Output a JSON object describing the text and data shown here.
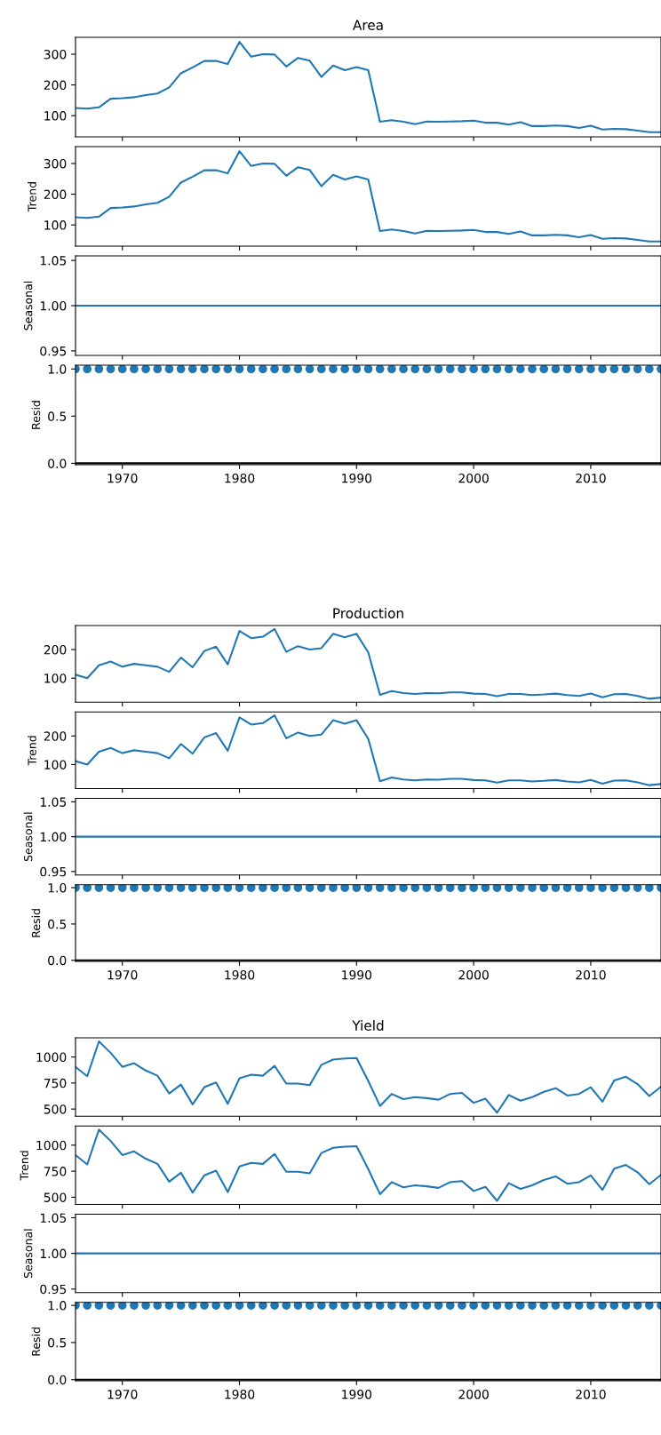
{
  "chart_data": [
    {
      "type": "line",
      "title": "Area",
      "color": "#1f77b4",
      "xlim": [
        1966,
        2016
      ],
      "xticks": [
        1970,
        1980,
        1990,
        2000,
        2010
      ],
      "ylim": [
        31,
        355
      ],
      "yticks": [
        100,
        200,
        300
      ],
      "tick_labels": "y",
      "x": [
        1966,
        1967,
        1968,
        1969,
        1970,
        1971,
        1972,
        1973,
        1974,
        1975,
        1976,
        1977,
        1978,
        1979,
        1980,
        1981,
        1982,
        1983,
        1984,
        1985,
        1986,
        1987,
        1988,
        1989,
        1990,
        1991,
        1992,
        1993,
        1994,
        1995,
        1996,
        1997,
        1998,
        1999,
        2000,
        2001,
        2002,
        2003,
        2004,
        2005,
        2006,
        2007,
        2008,
        2009,
        2010,
        2011,
        2012,
        2013,
        2014,
        2015,
        2016
      ],
      "values": [
        125,
        123,
        127,
        155,
        157,
        160,
        167,
        172,
        192,
        238,
        257,
        278,
        278,
        268,
        340,
        292,
        300,
        299,
        260,
        288,
        279,
        226,
        263,
        248,
        258,
        248,
        80,
        85,
        80,
        72,
        81,
        80,
        81,
        82,
        84,
        77,
        77,
        71,
        79,
        66,
        66,
        68,
        66,
        60,
        67,
        55,
        57,
        56,
        51,
        46,
        46
      ]
    },
    {
      "type": "line",
      "ylabel": "Trend",
      "color": "#1f77b4",
      "xlim": [
        1966,
        2016
      ],
      "xticks": [
        1970,
        1980,
        1990,
        2000,
        2010
      ],
      "ylim": [
        31,
        355
      ],
      "yticks": [
        100,
        200,
        300
      ],
      "tick_labels": "y",
      "x": [
        1966,
        1967,
        1968,
        1969,
        1970,
        1971,
        1972,
        1973,
        1974,
        1975,
        1976,
        1977,
        1978,
        1979,
        1980,
        1981,
        1982,
        1983,
        1984,
        1985,
        1986,
        1987,
        1988,
        1989,
        1990,
        1991,
        1992,
        1993,
        1994,
        1995,
        1996,
        1997,
        1998,
        1999,
        2000,
        2001,
        2002,
        2003,
        2004,
        2005,
        2006,
        2007,
        2008,
        2009,
        2010,
        2011,
        2012,
        2013,
        2014,
        2015,
        2016
      ],
      "values": [
        125,
        123,
        127,
        155,
        157,
        160,
        167,
        172,
        192,
        238,
        257,
        278,
        278,
        268,
        340,
        292,
        300,
        299,
        260,
        288,
        279,
        226,
        263,
        248,
        258,
        248,
        80,
        85,
        80,
        72,
        81,
        80,
        81,
        82,
        84,
        77,
        77,
        71,
        79,
        66,
        66,
        68,
        66,
        60,
        67,
        55,
        57,
        56,
        51,
        46,
        46
      ]
    },
    {
      "type": "line",
      "ylabel": "Seasonal",
      "color": "#1f77b4",
      "xlim": [
        1966,
        2016
      ],
      "xticks": [
        1970,
        1980,
        1990,
        2000,
        2010
      ],
      "ylim": [
        0.945,
        1.055
      ],
      "yticks": [
        {
          "value": 0.95,
          "label": "0.95"
        },
        {
          "value": 1.0,
          "label": "1.00"
        },
        {
          "value": 1.05,
          "label": "1.05"
        }
      ],
      "tick_labels": "y",
      "x": [
        1966,
        1967,
        1968,
        1969,
        1970,
        1971,
        1972,
        1973,
        1974,
        1975,
        1976,
        1977,
        1978,
        1979,
        1980,
        1981,
        1982,
        1983,
        1984,
        1985,
        1986,
        1987,
        1988,
        1989,
        1990,
        1991,
        1992,
        1993,
        1994,
        1995,
        1996,
        1997,
        1998,
        1999,
        2000,
        2001,
        2002,
        2003,
        2004,
        2005,
        2006,
        2007,
        2008,
        2009,
        2010,
        2011,
        2012,
        2013,
        2014,
        2015,
        2016
      ],
      "values": [
        1,
        1,
        1,
        1,
        1,
        1,
        1,
        1,
        1,
        1,
        1,
        1,
        1,
        1,
        1,
        1,
        1,
        1,
        1,
        1,
        1,
        1,
        1,
        1,
        1,
        1,
        1,
        1,
        1,
        1,
        1,
        1,
        1,
        1,
        1,
        1,
        1,
        1,
        1,
        1,
        1,
        1,
        1,
        1,
        1,
        1,
        1,
        1,
        1,
        1,
        1
      ]
    },
    {
      "type": "scatter",
      "ylabel": "Resid",
      "color": "#1f77b4",
      "marker": "circle",
      "xlim": [
        1966,
        2016
      ],
      "xticks": [
        1970,
        1980,
        1990,
        2000,
        2010
      ],
      "ylim": [
        -0.015,
        1.04
      ],
      "yticks": [
        {
          "value": 0,
          "label": "0.0"
        },
        {
          "value": 0.5,
          "label": "0.5"
        },
        {
          "value": 1,
          "label": "1.0"
        }
      ],
      "ref_lines": [
        {
          "axis": "y",
          "value": 0,
          "color": "#000000"
        }
      ],
      "x": [
        1966,
        1967,
        1968,
        1969,
        1970,
        1971,
        1972,
        1973,
        1974,
        1975,
        1976,
        1977,
        1978,
        1979,
        1980,
        1981,
        1982,
        1983,
        1984,
        1985,
        1986,
        1987,
        1988,
        1989,
        1990,
        1991,
        1992,
        1993,
        1994,
        1995,
        1996,
        1997,
        1998,
        1999,
        2000,
        2001,
        2002,
        2003,
        2004,
        2005,
        2006,
        2007,
        2008,
        2009,
        2010,
        2011,
        2012,
        2013,
        2014,
        2015,
        2016
      ],
      "values": [
        1,
        1,
        1,
        1,
        1,
        1,
        1,
        1,
        1,
        1,
        1,
        1,
        1,
        1,
        1,
        1,
        1,
        1,
        1,
        1,
        1,
        1,
        1,
        1,
        1,
        1,
        1,
        1,
        1,
        1,
        1,
        1,
        1,
        1,
        1,
        1,
        1,
        1,
        1,
        1,
        1,
        1,
        1,
        1,
        1,
        1,
        1,
        1,
        1,
        1,
        1
      ]
    },
    {
      "type": "line",
      "title": "Production",
      "color": "#1f77b4",
      "xlim": [
        1966,
        2016
      ],
      "xticks": [
        1970,
        1980,
        1990,
        2000,
        2010
      ],
      "ylim": [
        16,
        284
      ],
      "yticks": [
        100,
        200
      ],
      "tick_labels": "y",
      "x": [
        1966,
        1967,
        1968,
        1969,
        1970,
        1971,
        1972,
        1973,
        1974,
        1975,
        1976,
        1977,
        1978,
        1979,
        1980,
        1981,
        1982,
        1983,
        1984,
        1985,
        1986,
        1987,
        1988,
        1989,
        1990,
        1991,
        1992,
        1993,
        1994,
        1995,
        1996,
        1997,
        1998,
        1999,
        2000,
        2001,
        2002,
        2003,
        2004,
        2005,
        2006,
        2007,
        2008,
        2009,
        2010,
        2011,
        2012,
        2013,
        2014,
        2015,
        2016
      ],
      "values": [
        112,
        100,
        145,
        158,
        140,
        150,
        145,
        140,
        122,
        172,
        138,
        195,
        210,
        148,
        265,
        240,
        245,
        272,
        192,
        212,
        200,
        205,
        255,
        243,
        255,
        190,
        42,
        55,
        48,
        45,
        48,
        47,
        50,
        50,
        46,
        45,
        37,
        45,
        45,
        41,
        43,
        46,
        41,
        38,
        46,
        33,
        44,
        45,
        38,
        28,
        32
      ]
    },
    {
      "type": "line",
      "ylabel": "Trend",
      "color": "#1f77b4",
      "xlim": [
        1966,
        2016
      ],
      "xticks": [
        1970,
        1980,
        1990,
        2000,
        2010
      ],
      "ylim": [
        16,
        284
      ],
      "yticks": [
        100,
        200
      ],
      "tick_labels": "y",
      "x": [
        1966,
        1967,
        1968,
        1969,
        1970,
        1971,
        1972,
        1973,
        1974,
        1975,
        1976,
        1977,
        1978,
        1979,
        1980,
        1981,
        1982,
        1983,
        1984,
        1985,
        1986,
        1987,
        1988,
        1989,
        1990,
        1991,
        1992,
        1993,
        1994,
        1995,
        1996,
        1997,
        1998,
        1999,
        2000,
        2001,
        2002,
        2003,
        2004,
        2005,
        2006,
        2007,
        2008,
        2009,
        2010,
        2011,
        2012,
        2013,
        2014,
        2015,
        2016
      ],
      "values": [
        112,
        100,
        145,
        158,
        140,
        150,
        145,
        140,
        122,
        172,
        138,
        195,
        210,
        148,
        265,
        240,
        245,
        272,
        192,
        212,
        200,
        205,
        255,
        243,
        255,
        190,
        42,
        55,
        48,
        45,
        48,
        47,
        50,
        50,
        46,
        45,
        37,
        45,
        45,
        41,
        43,
        46,
        41,
        38,
        46,
        33,
        44,
        45,
        38,
        28,
        32
      ]
    },
    {
      "type": "line",
      "ylabel": "Seasonal",
      "color": "#1f77b4",
      "xlim": [
        1966,
        2016
      ],
      "xticks": [
        1970,
        1980,
        1990,
        2000,
        2010
      ],
      "ylim": [
        0.945,
        1.055
      ],
      "yticks": [
        {
          "value": 0.95,
          "label": "0.95"
        },
        {
          "value": 1.0,
          "label": "1.00"
        },
        {
          "value": 1.05,
          "label": "1.05"
        }
      ],
      "tick_labels": "y",
      "x": [
        1966,
        1967,
        1968,
        1969,
        1970,
        1971,
        1972,
        1973,
        1974,
        1975,
        1976,
        1977,
        1978,
        1979,
        1980,
        1981,
        1982,
        1983,
        1984,
        1985,
        1986,
        1987,
        1988,
        1989,
        1990,
        1991,
        1992,
        1993,
        1994,
        1995,
        1996,
        1997,
        1998,
        1999,
        2000,
        2001,
        2002,
        2003,
        2004,
        2005,
        2006,
        2007,
        2008,
        2009,
        2010,
        2011,
        2012,
        2013,
        2014,
        2015,
        2016
      ],
      "values": [
        1,
        1,
        1,
        1,
        1,
        1,
        1,
        1,
        1,
        1,
        1,
        1,
        1,
        1,
        1,
        1,
        1,
        1,
        1,
        1,
        1,
        1,
        1,
        1,
        1,
        1,
        1,
        1,
        1,
        1,
        1,
        1,
        1,
        1,
        1,
        1,
        1,
        1,
        1,
        1,
        1,
        1,
        1,
        1,
        1,
        1,
        1,
        1,
        1,
        1,
        1
      ]
    },
    {
      "type": "scatter",
      "ylabel": "Resid",
      "color": "#1f77b4",
      "marker": "circle",
      "xlim": [
        1966,
        2016
      ],
      "xticks": [
        1970,
        1980,
        1990,
        2000,
        2010
      ],
      "ylim": [
        -0.015,
        1.04
      ],
      "yticks": [
        {
          "value": 0,
          "label": "0.0"
        },
        {
          "value": 0.5,
          "label": "0.5"
        },
        {
          "value": 1,
          "label": "1.0"
        }
      ],
      "ref_lines": [
        {
          "axis": "y",
          "value": 0,
          "color": "#000000"
        }
      ],
      "x": [
        1966,
        1967,
        1968,
        1969,
        1970,
        1971,
        1972,
        1973,
        1974,
        1975,
        1976,
        1977,
        1978,
        1979,
        1980,
        1981,
        1982,
        1983,
        1984,
        1985,
        1986,
        1987,
        1988,
        1989,
        1990,
        1991,
        1992,
        1993,
        1994,
        1995,
        1996,
        1997,
        1998,
        1999,
        2000,
        2001,
        2002,
        2003,
        2004,
        2005,
        2006,
        2007,
        2008,
        2009,
        2010,
        2011,
        2012,
        2013,
        2014,
        2015,
        2016
      ],
      "values": [
        1,
        1,
        1,
        1,
        1,
        1,
        1,
        1,
        1,
        1,
        1,
        1,
        1,
        1,
        1,
        1,
        1,
        1,
        1,
        1,
        1,
        1,
        1,
        1,
        1,
        1,
        1,
        1,
        1,
        1,
        1,
        1,
        1,
        1,
        1,
        1,
        1,
        1,
        1,
        1,
        1,
        1,
        1,
        1,
        1,
        1,
        1,
        1,
        1,
        1,
        1
      ]
    },
    {
      "type": "line",
      "title": "Yield",
      "color": "#1f77b4",
      "xlim": [
        1966,
        2016
      ],
      "xticks": [
        1970,
        1980,
        1990,
        2000,
        2010
      ],
      "ylim": [
        431,
        1184
      ],
      "yticks": [
        500,
        750,
        1000
      ],
      "tick_labels": "y",
      "x": [
        1966,
        1967,
        1968,
        1969,
        1970,
        1971,
        1972,
        1973,
        1974,
        1975,
        1976,
        1977,
        1978,
        1979,
        1980,
        1981,
        1982,
        1983,
        1984,
        1985,
        1986,
        1987,
        1988,
        1989,
        1990,
        1991,
        1992,
        1993,
        1994,
        1995,
        1996,
        1997,
        1998,
        1999,
        2000,
        2001,
        2002,
        2003,
        2004,
        2005,
        2006,
        2007,
        2008,
        2009,
        2010,
        2011,
        2012,
        2013,
        2014,
        2015,
        2016
      ],
      "values": [
        905,
        815,
        1150,
        1040,
        905,
        940,
        870,
        820,
        650,
        735,
        545,
        710,
        755,
        550,
        795,
        830,
        820,
        915,
        745,
        745,
        730,
        925,
        975,
        985,
        990,
        770,
        530,
        645,
        595,
        615,
        605,
        590,
        645,
        655,
        560,
        600,
        465,
        635,
        580,
        615,
        665,
        700,
        630,
        645,
        710,
        570,
        775,
        810,
        740,
        625,
        715
      ]
    },
    {
      "type": "line",
      "ylabel": "Trend",
      "color": "#1f77b4",
      "xlim": [
        1966,
        2016
      ],
      "xticks": [
        1970,
        1980,
        1990,
        2000,
        2010
      ],
      "ylim": [
        431,
        1184
      ],
      "yticks": [
        500,
        750,
        1000
      ],
      "tick_labels": "y",
      "x": [
        1966,
        1967,
        1968,
        1969,
        1970,
        1971,
        1972,
        1973,
        1974,
        1975,
        1976,
        1977,
        1978,
        1979,
        1980,
        1981,
        1982,
        1983,
        1984,
        1985,
        1986,
        1987,
        1988,
        1989,
        1990,
        1991,
        1992,
        1993,
        1994,
        1995,
        1996,
        1997,
        1998,
        1999,
        2000,
        2001,
        2002,
        2003,
        2004,
        2005,
        2006,
        2007,
        2008,
        2009,
        2010,
        2011,
        2012,
        2013,
        2014,
        2015,
        2016
      ],
      "values": [
        905,
        815,
        1150,
        1040,
        905,
        940,
        870,
        820,
        650,
        735,
        545,
        710,
        755,
        550,
        795,
        830,
        820,
        915,
        745,
        745,
        730,
        925,
        975,
        985,
        990,
        770,
        530,
        645,
        595,
        615,
        605,
        590,
        645,
        655,
        560,
        600,
        465,
        635,
        580,
        615,
        665,
        700,
        630,
        645,
        710,
        570,
        775,
        810,
        740,
        625,
        715
      ]
    },
    {
      "type": "line",
      "ylabel": "Seasonal",
      "color": "#1f77b4",
      "xlim": [
        1966,
        2016
      ],
      "xticks": [
        1970,
        1980,
        1990,
        2000,
        2010
      ],
      "ylim": [
        0.945,
        1.055
      ],
      "yticks": [
        {
          "value": 0.95,
          "label": "0.95"
        },
        {
          "value": 1.0,
          "label": "1.00"
        },
        {
          "value": 1.05,
          "label": "1.05"
        }
      ],
      "tick_labels": "y",
      "x": [
        1966,
        1967,
        1968,
        1969,
        1970,
        1971,
        1972,
        1973,
        1974,
        1975,
        1976,
        1977,
        1978,
        1979,
        1980,
        1981,
        1982,
        1983,
        1984,
        1985,
        1986,
        1987,
        1988,
        1989,
        1990,
        1991,
        1992,
        1993,
        1994,
        1995,
        1996,
        1997,
        1998,
        1999,
        2000,
        2001,
        2002,
        2003,
        2004,
        2005,
        2006,
        2007,
        2008,
        2009,
        2010,
        2011,
        2012,
        2013,
        2014,
        2015,
        2016
      ],
      "values": [
        1,
        1,
        1,
        1,
        1,
        1,
        1,
        1,
        1,
        1,
        1,
        1,
        1,
        1,
        1,
        1,
        1,
        1,
        1,
        1,
        1,
        1,
        1,
        1,
        1,
        1,
        1,
        1,
        1,
        1,
        1,
        1,
        1,
        1,
        1,
        1,
        1,
        1,
        1,
        1,
        1,
        1,
        1,
        1,
        1,
        1,
        1,
        1,
        1,
        1,
        1
      ]
    },
    {
      "type": "scatter",
      "ylabel": "Resid",
      "color": "#1f77b4",
      "marker": "circle",
      "xlim": [
        1966,
        2016
      ],
      "xticks": [
        1970,
        1980,
        1990,
        2000,
        2010
      ],
      "ylim": [
        -0.015,
        1.04
      ],
      "yticks": [
        {
          "value": 0,
          "label": "0.0"
        },
        {
          "value": 0.5,
          "label": "0.5"
        },
        {
          "value": 1,
          "label": "1.0"
        }
      ],
      "ref_lines": [
        {
          "axis": "y",
          "value": 0,
          "color": "#000000"
        }
      ],
      "x": [
        1966,
        1967,
        1968,
        1969,
        1970,
        1971,
        1972,
        1973,
        1974,
        1975,
        1976,
        1977,
        1978,
        1979,
        1980,
        1981,
        1982,
        1983,
        1984,
        1985,
        1986,
        1987,
        1988,
        1989,
        1990,
        1991,
        1992,
        1993,
        1994,
        1995,
        1996,
        1997,
        1998,
        1999,
        2000,
        2001,
        2002,
        2003,
        2004,
        2005,
        2006,
        2007,
        2008,
        2009,
        2010,
        2011,
        2012,
        2013,
        2014,
        2015,
        2016
      ],
      "values": [
        1,
        1,
        1,
        1,
        1,
        1,
        1,
        1,
        1,
        1,
        1,
        1,
        1,
        1,
        1,
        1,
        1,
        1,
        1,
        1,
        1,
        1,
        1,
        1,
        1,
        1,
        1,
        1,
        1,
        1,
        1,
        1,
        1,
        1,
        1,
        1,
        1,
        1,
        1,
        1,
        1,
        1,
        1,
        1,
        1,
        1,
        1,
        1,
        1,
        1,
        1
      ]
    }
  ]
}
